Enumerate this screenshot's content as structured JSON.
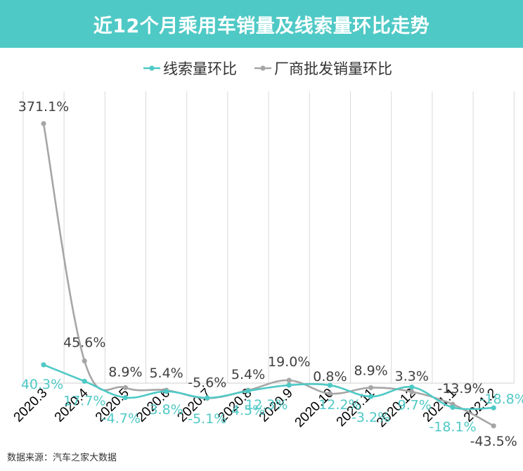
{
  "title": "近12个月乘用车销量及线索量环比走势",
  "source_note": "数据来源：汽车之家大数据",
  "colors": {
    "header": "#4fc9c6",
    "leads": "#4fc9c6",
    "wholesale": "#a6a6a6",
    "wholesale_label": "#404040"
  },
  "chart_data": {
    "type": "line",
    "title": "近12个月乘用车销量及线索量环比走势",
    "categories": [
      "2020.3",
      "2020.4",
      "2020.5",
      "2020.6",
      "2020.7",
      "2020.8",
      "2020.9",
      "2020.10",
      "2020.11",
      "2020.12",
      "2021.1",
      "2021.2"
    ],
    "legend_position": "top-center",
    "grid": "vertical",
    "ylim": [
      -130,
      400
    ],
    "series": [
      {
        "name": "线索量环比",
        "values": [
          40.3,
          17.7,
          -4.7,
          3.8,
          -5.1,
          4.5,
          12.3,
          12.2,
          -3.2,
          9.7,
          -18.1,
          -18.8
        ],
        "labels": [
          "40.3%",
          "17.7%",
          "-4.7%",
          "3.8%",
          "-5.1%",
          "4.5%",
          "12.3%",
          "12.2%",
          "-3.2%",
          "9.7%",
          "-18.1%",
          "-18.8%"
        ]
      },
      {
        "name": "厂商批发销量环比",
        "values": [
          371.1,
          45.6,
          8.9,
          5.4,
          -5.6,
          5.4,
          19.0,
          0.8,
          8.9,
          3.3,
          -13.9,
          -43.5
        ],
        "labels": [
          "371.1%",
          "45.6%",
          "8.9%",
          "5.4%",
          "-5.6%",
          "5.4%",
          "19.0%",
          "0.8%",
          "8.9%",
          "3.3%",
          "-13.9%",
          "-43.5%"
        ]
      }
    ]
  }
}
